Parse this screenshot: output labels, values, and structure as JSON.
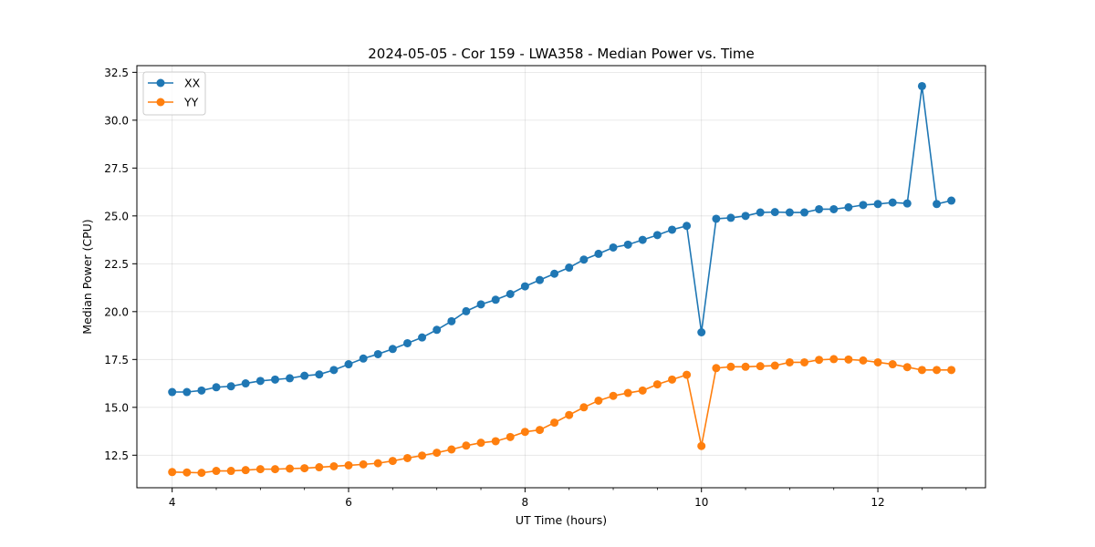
{
  "chart_data": {
    "type": "line",
    "title": "2024-05-05 - Cor 159 - LWA358 - Median Power vs. Time",
    "xlabel": "UT Time (hours)",
    "ylabel": "Median Power (CPU)",
    "xlim": [
      3.6,
      13.22
    ],
    "ylim": [
      10.8,
      32.85
    ],
    "xticks": [
      4,
      6,
      8,
      10,
      12
    ],
    "xtick_labels": [
      "4",
      "6",
      "8",
      "10",
      "12"
    ],
    "yticks": [
      12.5,
      15.0,
      17.5,
      20.0,
      22.5,
      25.0,
      27.5,
      30.0,
      32.5
    ],
    "ytick_labels": [
      "12.5",
      "15.0",
      "17.5",
      "20.0",
      "22.5",
      "25.0",
      "27.5",
      "30.0",
      "32.5"
    ],
    "grid": true,
    "legend_position": "top-left",
    "x": [
      4.0,
      4.167,
      4.333,
      4.5,
      4.667,
      4.833,
      5.0,
      5.167,
      5.333,
      5.5,
      5.667,
      5.833,
      6.0,
      6.167,
      6.333,
      6.5,
      6.667,
      6.833,
      7.0,
      7.167,
      7.333,
      7.5,
      7.667,
      7.833,
      8.0,
      8.167,
      8.333,
      8.5,
      8.667,
      8.833,
      9.0,
      9.167,
      9.333,
      9.5,
      9.667,
      9.833,
      10.0,
      10.167,
      10.333,
      10.5,
      10.667,
      10.833,
      11.0,
      11.167,
      11.333,
      11.5,
      11.667,
      11.833,
      12.0,
      12.167,
      12.333,
      12.5,
      12.667,
      12.833
    ],
    "series": [
      {
        "name": "XX",
        "color": "#1f77b4",
        "values": [
          15.8,
          15.8,
          15.88,
          16.05,
          16.1,
          16.25,
          16.38,
          16.45,
          16.52,
          16.65,
          16.72,
          16.95,
          17.25,
          17.55,
          17.78,
          18.05,
          18.35,
          18.65,
          19.05,
          19.5,
          20.02,
          20.38,
          20.62,
          20.92,
          21.32,
          21.65,
          21.98,
          22.3,
          22.72,
          23.02,
          23.35,
          23.5,
          23.75,
          24.0,
          24.28,
          24.48,
          18.92,
          24.85,
          24.9,
          25.0,
          25.18,
          25.2,
          25.18,
          25.18,
          25.35,
          25.35,
          25.45,
          25.57,
          25.62,
          25.7,
          25.65,
          31.78,
          25.62,
          25.8
        ]
      },
      {
        "name": "YY",
        "color": "#ff7f0e",
        "values": [
          11.62,
          11.6,
          11.58,
          11.68,
          11.68,
          11.72,
          11.77,
          11.77,
          11.8,
          11.82,
          11.87,
          11.92,
          11.97,
          12.02,
          12.08,
          12.2,
          12.35,
          12.48,
          12.63,
          12.8,
          13.0,
          13.15,
          13.23,
          13.45,
          13.72,
          13.82,
          14.2,
          14.6,
          15.0,
          15.35,
          15.6,
          15.75,
          15.88,
          16.2,
          16.45,
          16.7,
          12.98,
          17.05,
          17.12,
          17.12,
          17.15,
          17.18,
          17.35,
          17.35,
          17.48,
          17.52,
          17.5,
          17.45,
          17.35,
          17.25,
          17.1,
          16.95,
          16.95,
          16.95
        ]
      }
    ]
  }
}
